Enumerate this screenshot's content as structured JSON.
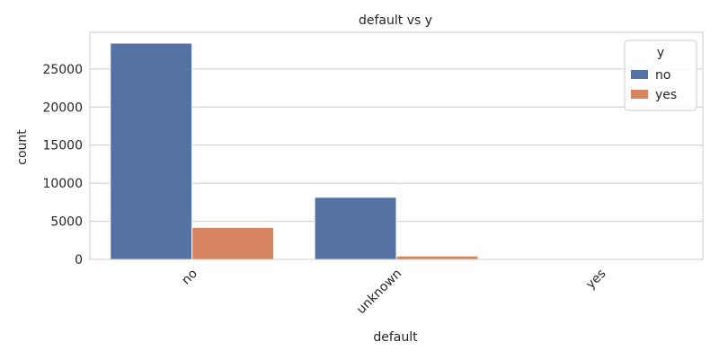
{
  "chart_data": {
    "type": "bar",
    "title": "default vs y",
    "xlabel": "default",
    "ylabel": "count",
    "categories": [
      "no",
      "unknown",
      "yes"
    ],
    "series": [
      {
        "name": "no",
        "values": [
          28391,
          8154,
          3
        ]
      },
      {
        "name": "yes",
        "values": [
          4197,
          443,
          0
        ]
      }
    ],
    "ylim": [
      0,
      29810
    ],
    "yticks": [
      0,
      5000,
      10000,
      15000,
      20000,
      25000
    ],
    "grid": true,
    "legend": {
      "title": "y",
      "position": "top-right"
    },
    "colors": {
      "no": "#5572a4",
      "yes": "#d5845f"
    }
  }
}
